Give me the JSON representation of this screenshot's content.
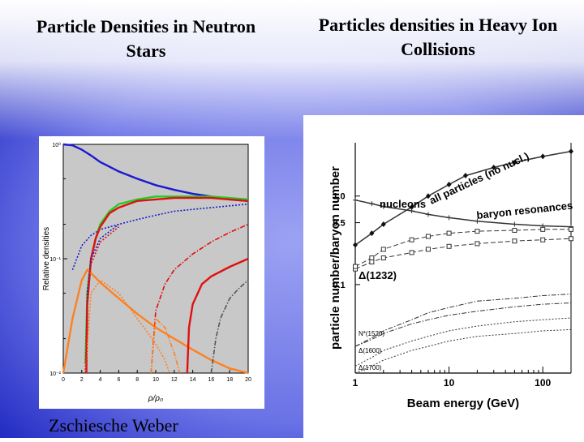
{
  "slide": {
    "title_left": "Particle Densities in Neutron Stars",
    "title_right": "Particles densities in Heavy Ion Collisions",
    "credit": "Zschiesche Weber"
  },
  "colors": {
    "background_dark": "#0d16b8",
    "background_light": "#7f86e8",
    "plot_bg": "#c8c8c8"
  },
  "chart_data": [
    {
      "type": "line",
      "title": "",
      "xlabel": "ρ/ρ₀",
      "ylabel": "Relative densities",
      "xscale": "linear",
      "yscale": "log",
      "xlim": [
        0,
        20
      ],
      "ylim": [
        0.01,
        1
      ],
      "x_ticks": [
        "0",
        "2",
        "4",
        "6",
        "8",
        "10",
        "12",
        "14",
        "16",
        "18",
        "20"
      ],
      "y_tick_labels": [
        "10⁰",
        "10⁻¹",
        "10⁻²"
      ],
      "series": [
        {
          "color": "#1a1ad0",
          "style": "solid",
          "x": [
            0,
            1,
            2,
            3,
            4,
            6,
            8,
            10,
            12,
            14,
            16,
            18,
            20
          ],
          "y": [
            1.0,
            0.98,
            0.9,
            0.8,
            0.7,
            0.58,
            0.5,
            0.44,
            0.4,
            0.37,
            0.35,
            0.33,
            0.32
          ]
        },
        {
          "color": "#1a1ad0",
          "style": "dotted",
          "x": [
            1,
            2,
            3,
            4,
            6,
            8,
            10,
            12,
            14,
            16,
            18,
            20
          ],
          "y": [
            0.08,
            0.13,
            0.16,
            0.18,
            0.2,
            0.22,
            0.24,
            0.26,
            0.27,
            0.28,
            0.29,
            0.3
          ]
        },
        {
          "color": "#22cc22",
          "style": "solid",
          "x": [
            2.4,
            2.6,
            3,
            3.5,
            4,
            5,
            6,
            8,
            10,
            12,
            14,
            16,
            18,
            20
          ],
          "y": [
            0.012,
            0.05,
            0.1,
            0.15,
            0.2,
            0.26,
            0.3,
            0.33,
            0.35,
            0.35,
            0.35,
            0.35,
            0.34,
            0.33
          ]
        },
        {
          "color": "#e01010",
          "style": "solid",
          "x": [
            2.5,
            2.6,
            3,
            3.5,
            4,
            5,
            6,
            8,
            10,
            12,
            14,
            16,
            18,
            20
          ],
          "y": [
            0.01,
            0.04,
            0.1,
            0.15,
            0.19,
            0.25,
            0.28,
            0.32,
            0.33,
            0.34,
            0.34,
            0.34,
            0.33,
            0.32
          ]
        },
        {
          "color": "#ff8020",
          "style": "solid",
          "x": [
            0,
            1,
            2,
            2.6,
            3,
            4,
            6,
            8,
            10,
            12,
            14,
            16,
            18,
            20
          ],
          "y": [
            0.01,
            0.03,
            0.065,
            0.08,
            0.075,
            0.062,
            0.045,
            0.033,
            0.025,
            0.02,
            0.016,
            0.013,
            0.011,
            0.01
          ]
        },
        {
          "color": "#ff8020",
          "style": "dotted",
          "x": [
            2.4,
            3,
            4,
            6,
            8,
            10,
            11,
            11.5
          ],
          "y": [
            0.01,
            0.05,
            0.065,
            0.05,
            0.03,
            0.018,
            0.013,
            0.01
          ]
        },
        {
          "color": "#e01010",
          "style": "dashdot",
          "x": [
            9.5,
            10,
            11,
            12,
            14,
            16,
            18,
            20
          ],
          "y": [
            0.01,
            0.035,
            0.06,
            0.08,
            0.11,
            0.14,
            0.17,
            0.2
          ]
        },
        {
          "color": "#ff8020",
          "style": "dashdot",
          "x": [
            9.5,
            10,
            11,
            12,
            12.6
          ],
          "y": [
            0.01,
            0.03,
            0.025,
            0.015,
            0.01
          ]
        },
        {
          "color": "#e01010",
          "style": "solid",
          "x": [
            13.4,
            13.6,
            14,
            15,
            16,
            18,
            20
          ],
          "y": [
            0.01,
            0.025,
            0.04,
            0.06,
            0.07,
            0.085,
            0.1
          ]
        },
        {
          "color": "#555555",
          "style": "dashdot",
          "x": [
            16,
            16.5,
            17,
            18,
            19,
            20
          ],
          "y": [
            0.01,
            0.02,
            0.03,
            0.045,
            0.055,
            0.065
          ]
        },
        {
          "color": "#1a1ad0",
          "style": "dotted",
          "x": [
            2.4,
            2.6,
            3,
            4,
            6
          ],
          "y": [
            0.01,
            0.05,
            0.1,
            0.15,
            0.2
          ]
        },
        {
          "color": "#e01010",
          "style": "dotted",
          "x": [
            2.4,
            2.6,
            3,
            4,
            6
          ],
          "y": [
            0.01,
            0.04,
            0.09,
            0.14,
            0.19
          ]
        }
      ]
    },
    {
      "type": "line",
      "title": "",
      "xlabel": "Beam energy (GeV)",
      "ylabel": "particle number/baryon number",
      "xscale": "log",
      "yscale": "log",
      "xlim": [
        1,
        200
      ],
      "ylim": [
        0.01,
        4
      ],
      "x_ticks": [
        "1",
        "10",
        "100"
      ],
      "y_ticks": [
        "1.0",
        "0.5",
        "0.1"
      ],
      "annotations": [
        "all particles (no nucl.)",
        "nucleons",
        "baryon resonances",
        "Δ(1232)",
        "N*(1520)",
        "Δ(1600)",
        "Δ(1700)"
      ],
      "series": [
        {
          "marker": "diamond",
          "style": "solid",
          "x": [
            1,
            1.5,
            2,
            4,
            6,
            10,
            15,
            30,
            50,
            100,
            200
          ],
          "y": [
            0.28,
            0.38,
            0.48,
            0.75,
            1.0,
            1.35,
            1.7,
            2.1,
            2.4,
            2.8,
            3.2
          ]
        },
        {
          "marker": "plus",
          "style": "solid",
          "x": [
            1,
            1.5,
            2,
            4,
            6,
            10,
            20,
            50,
            100,
            200
          ],
          "y": [
            0.9,
            0.82,
            0.76,
            0.68,
            0.62,
            0.57,
            0.52,
            0.48,
            0.46,
            0.45
          ]
        },
        {
          "marker": "square",
          "style": "dashed",
          "x": [
            1,
            1.5,
            2,
            4,
            6,
            10,
            20,
            50,
            100,
            200
          ],
          "y": [
            0.15,
            0.18,
            0.2,
            0.23,
            0.25,
            0.27,
            0.29,
            0.31,
            0.32,
            0.33
          ]
        },
        {
          "marker": "square",
          "style": "dashed",
          "x": [
            1,
            1.5,
            2,
            4,
            6,
            10,
            20,
            50,
            100,
            200
          ],
          "y": [
            0.16,
            0.2,
            0.25,
            0.32,
            0.35,
            0.38,
            0.4,
            0.41,
            0.42,
            0.42
          ]
        },
        {
          "marker": "none",
          "style": "dashdot",
          "x": [
            1,
            1.5,
            2,
            4,
            6,
            10,
            20,
            50,
            100,
            200
          ],
          "y": [
            0.02,
            0.025,
            0.03,
            0.04,
            0.048,
            0.055,
            0.065,
            0.07,
            0.075,
            0.078
          ]
        },
        {
          "marker": "none",
          "style": "dashdot",
          "x": [
            1,
            1.5,
            2,
            4,
            6,
            10,
            20,
            50,
            100,
            200
          ],
          "y": [
            0.02,
            0.024,
            0.028,
            0.036,
            0.04,
            0.045,
            0.05,
            0.056,
            0.06,
            0.062
          ]
        },
        {
          "marker": "none",
          "style": "dotted",
          "x": [
            1,
            1.5,
            2,
            4,
            6,
            10,
            20,
            50,
            100,
            200
          ],
          "y": [
            0.012,
            0.015,
            0.018,
            0.023,
            0.026,
            0.03,
            0.034,
            0.038,
            0.04,
            0.042
          ]
        },
        {
          "marker": "none",
          "style": "dotted",
          "x": [
            1,
            1.5,
            2,
            4,
            6,
            10,
            20,
            50,
            100,
            200
          ],
          "y": [
            0.01,
            0.012,
            0.014,
            0.018,
            0.02,
            0.023,
            0.026,
            0.028,
            0.03,
            0.031
          ]
        }
      ]
    }
  ]
}
